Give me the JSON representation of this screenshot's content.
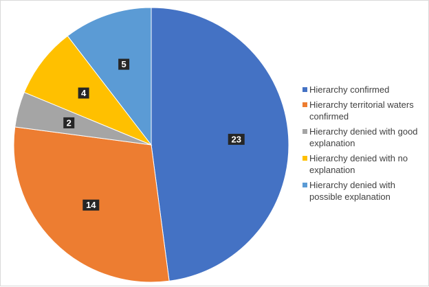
{
  "chart_data": {
    "type": "pie",
    "title": "",
    "legend_position": "right",
    "slices": [
      {
        "label": "Hierarchy confirmed",
        "value": 23,
        "color": "#4472c4"
      },
      {
        "label": "Hierarchy territorial waters confirmed",
        "value": 14,
        "color": "#ed7d31"
      },
      {
        "label": "Hierarchy denied with good explanation",
        "value": 2,
        "color": "#a5a5a5"
      },
      {
        "label": "Hierarchy denied with no explanation",
        "value": 4,
        "color": "#ffc000"
      },
      {
        "label": "Hierarchy denied with possible explanation",
        "value": 5,
        "color": "#5b9bd5"
      }
    ]
  }
}
